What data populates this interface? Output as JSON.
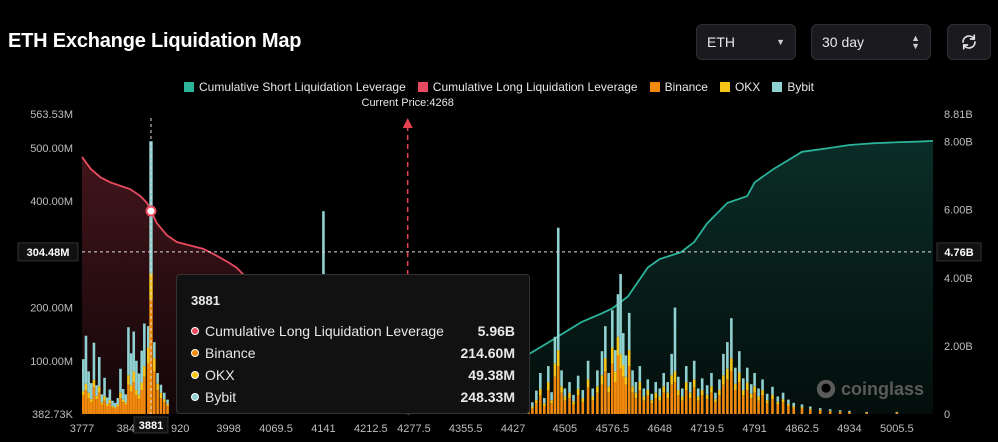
{
  "title": "ETH Exchange Liquidation Map",
  "controls": {
    "symbol": "ETH",
    "range": "30 day"
  },
  "watermark": "coinglass",
  "tooltip": {
    "title": "3881",
    "rows": [
      {
        "label": "Cumulative Long Liquidation Leverage",
        "value": "5.96B",
        "color": "#e84a5f"
      },
      {
        "label": "Binance",
        "value": "214.60M",
        "color": "#f2890c"
      },
      {
        "label": "OKX",
        "value": "49.38M",
        "color": "#f7c518"
      },
      {
        "label": "Bybit",
        "value": "248.33M",
        "color": "#8fd0d0"
      }
    ]
  },
  "chart_data": {
    "type": "bar",
    "legend": [
      {
        "name": "Cumulative Short Liquidation Leverage",
        "color": "#2bb39a"
      },
      {
        "name": "Cumulative Long Liquidation Leverage",
        "color": "#e84a5f"
      },
      {
        "name": "Binance",
        "color": "#f2890c"
      },
      {
        "name": "OKX",
        "color": "#f7c518"
      },
      {
        "name": "Bybit",
        "color": "#8fd0d0"
      }
    ],
    "current_price_label": "Current Price:4268",
    "current_price": 4268,
    "x_range": [
      3777,
      5060
    ],
    "x_ticks": [
      "3777",
      "384",
      "3881",
      "920",
      "3998",
      "4069.5",
      "4141",
      "4212.5",
      "4277.5",
      "4355.5",
      "4427",
      "4505",
      "4576.5",
      "4648",
      "4719.5",
      "4791",
      "4862.5",
      "4934",
      "5005.5"
    ],
    "y_left_ticks": [
      "563.53M",
      "500.00M",
      "400.00M",
      "304.48M",
      "200.00M",
      "100.00M",
      "382.73K"
    ],
    "y_left_range": [
      0,
      563.53
    ],
    "y_right_ticks": [
      "8.81B",
      "8.00B",
      "6.00B",
      "4.76B",
      "4.00B",
      "2.00B",
      "0"
    ],
    "y_right_range": [
      0,
      8.81
    ],
    "crosshair": {
      "x": 3881,
      "left_value": "304.48M",
      "right_value": "4.76B"
    },
    "long_cumulative": {
      "x": [
        3777,
        3790,
        3805,
        3820,
        3835,
        3850,
        3865,
        3875,
        3881,
        3890,
        3905,
        3920,
        3940,
        3960,
        3980,
        3998,
        4010,
        4030,
        4060,
        4100,
        4150,
        4200,
        4250,
        4268
      ],
      "y": [
        7.55,
        7.2,
        6.95,
        6.8,
        6.7,
        6.6,
        6.4,
        6.2,
        5.96,
        5.6,
        5.25,
        5.05,
        4.95,
        4.85,
        4.65,
        4.45,
        4.3,
        3.9,
        3.3,
        2.6,
        1.8,
        1.1,
        0.4,
        0.0
      ]
    },
    "short_cumulative": {
      "x": [
        4268,
        4300,
        4350,
        4400,
        4427,
        4450,
        4480,
        4505,
        4530,
        4560,
        4576.5,
        4600,
        4630,
        4648,
        4680,
        4700,
        4719.5,
        4750,
        4780,
        4791,
        4820,
        4850,
        4862.5,
        4900,
        4934,
        4970,
        5005.5,
        5040,
        5060
      ],
      "y": [
        0.0,
        0.3,
        0.8,
        1.2,
        1.6,
        1.75,
        2.1,
        2.4,
        2.7,
        2.95,
        3.1,
        3.45,
        4.3,
        4.55,
        4.75,
        5.05,
        5.6,
        6.2,
        6.4,
        6.8,
        7.2,
        7.55,
        7.7,
        7.8,
        7.9,
        7.95,
        7.98,
        8.0,
        8.02
      ]
    },
    "bars": [
      {
        "x": 3779,
        "binance": 35,
        "okx": 8,
        "bybit": 60
      },
      {
        "x": 3783,
        "binance": 45,
        "okx": 12,
        "bybit": 90
      },
      {
        "x": 3787,
        "binance": 30,
        "okx": 10,
        "bybit": 40
      },
      {
        "x": 3791,
        "binance": 22,
        "okx": 6,
        "bybit": 30
      },
      {
        "x": 3795,
        "binance": 50,
        "okx": 14,
        "bybit": 70
      },
      {
        "x": 3799,
        "binance": 28,
        "okx": 6,
        "bybit": 20
      },
      {
        "x": 3803,
        "binance": 40,
        "okx": 12,
        "bybit": 55
      },
      {
        "x": 3807,
        "binance": 18,
        "okx": 4,
        "bybit": 15
      },
      {
        "x": 3811,
        "binance": 25,
        "okx": 8,
        "bybit": 35
      },
      {
        "x": 3815,
        "binance": 15,
        "okx": 4,
        "bybit": 12
      },
      {
        "x": 3819,
        "binance": 20,
        "okx": 6,
        "bybit": 20
      },
      {
        "x": 3823,
        "binance": 12,
        "okx": 3,
        "bybit": 10
      },
      {
        "x": 3827,
        "binance": 10,
        "okx": 3,
        "bybit": 8
      },
      {
        "x": 3831,
        "binance": 14,
        "okx": 4,
        "bybit": 12
      },
      {
        "x": 3835,
        "binance": 30,
        "okx": 10,
        "bybit": 45
      },
      {
        "x": 3839,
        "binance": 22,
        "okx": 5,
        "bybit": 20
      },
      {
        "x": 3843,
        "binance": 18,
        "okx": 4,
        "bybit": 15
      },
      {
        "x": 3847,
        "binance": 55,
        "okx": 18,
        "bybit": 90
      },
      {
        "x": 3851,
        "binance": 42,
        "okx": 12,
        "bybit": 60
      },
      {
        "x": 3855,
        "binance": 60,
        "okx": 20,
        "bybit": 75
      },
      {
        "x": 3859,
        "binance": 35,
        "okx": 10,
        "bybit": 55
      },
      {
        "x": 3863,
        "binance": 28,
        "okx": 8,
        "bybit": 40
      },
      {
        "x": 3867,
        "binance": 45,
        "okx": 14,
        "bybit": 60
      },
      {
        "x": 3871,
        "binance": 70,
        "okx": 20,
        "bybit": 80
      },
      {
        "x": 3877,
        "binance": 95,
        "okx": 30,
        "bybit": 40
      },
      {
        "x": 3881,
        "binance": 214.6,
        "okx": 49.38,
        "bybit": 248.33
      },
      {
        "x": 3886,
        "binance": 80,
        "okx": 25,
        "bybit": 30
      },
      {
        "x": 3891,
        "binance": 45,
        "okx": 12,
        "bybit": 20
      },
      {
        "x": 3896,
        "binance": 30,
        "okx": 10,
        "bybit": 15
      },
      {
        "x": 3901,
        "binance": 22,
        "okx": 6,
        "bybit": 12
      },
      {
        "x": 3906,
        "binance": 15,
        "okx": 4,
        "bybit": 8
      },
      {
        "x": 4141,
        "binance": 20,
        "okx": 6,
        "bybit": 355
      },
      {
        "x": 4430,
        "binance": 6,
        "okx": 2,
        "bybit": 4
      },
      {
        "x": 4436,
        "binance": 15,
        "okx": 5,
        "bybit": 12
      },
      {
        "x": 4442,
        "binance": 8,
        "okx": 3,
        "bybit": 5
      },
      {
        "x": 4450,
        "binance": 25,
        "okx": 8,
        "bybit": 20
      },
      {
        "x": 4456,
        "binance": 10,
        "okx": 4,
        "bybit": 8
      },
      {
        "x": 4462,
        "binance": 20,
        "okx": 6,
        "bybit": 18
      },
      {
        "x": 4468,
        "binance": 35,
        "okx": 12,
        "bybit": 30
      },
      {
        "x": 4474,
        "binance": 15,
        "okx": 5,
        "bybit": 10
      },
      {
        "x": 4480,
        "binance": 45,
        "okx": 15,
        "bybit": 30
      },
      {
        "x": 4485,
        "binance": 20,
        "okx": 6,
        "bybit": 15
      },
      {
        "x": 4490,
        "binance": 70,
        "okx": 25,
        "bybit": 50
      },
      {
        "x": 4495,
        "binance": 90,
        "okx": 30,
        "bybit": 230
      },
      {
        "x": 4500,
        "binance": 40,
        "okx": 12,
        "bybit": 30
      },
      {
        "x": 4505,
        "binance": 25,
        "okx": 8,
        "bybit": 15
      },
      {
        "x": 4512,
        "binance": 30,
        "okx": 10,
        "bybit": 20
      },
      {
        "x": 4518,
        "binance": 18,
        "okx": 6,
        "bybit": 12
      },
      {
        "x": 4525,
        "binance": 35,
        "okx": 12,
        "bybit": 25
      },
      {
        "x": 4532,
        "binance": 22,
        "okx": 8,
        "bybit": 15
      },
      {
        "x": 4540,
        "binance": 50,
        "okx": 15,
        "bybit": 35
      },
      {
        "x": 4547,
        "binance": 25,
        "okx": 8,
        "bybit": 15
      },
      {
        "x": 4554,
        "binance": 40,
        "okx": 12,
        "bybit": 30
      },
      {
        "x": 4561,
        "binance": 55,
        "okx": 18,
        "bybit": 45
      },
      {
        "x": 4566,
        "binance": 80,
        "okx": 25,
        "bybit": 60
      },
      {
        "x": 4571,
        "binance": 40,
        "okx": 12,
        "bybit": 25
      },
      {
        "x": 4576.5,
        "binance": 95,
        "okx": 30,
        "bybit": 70
      },
      {
        "x": 4581,
        "binance": 60,
        "okx": 20,
        "bybit": 40
      },
      {
        "x": 4585,
        "binance": 110,
        "okx": 35,
        "bybit": 80
      },
      {
        "x": 4589,
        "binance": 85,
        "okx": 28,
        "bybit": 150
      },
      {
        "x": 4593,
        "binance": 70,
        "okx": 22,
        "bybit": 60
      },
      {
        "x": 4597,
        "binance": 55,
        "okx": 15,
        "bybit": 40
      },
      {
        "x": 4602,
        "binance": 90,
        "okx": 30,
        "bybit": 70
      },
      {
        "x": 4607,
        "binance": 40,
        "okx": 12,
        "bybit": 30
      },
      {
        "x": 4612,
        "binance": 30,
        "okx": 10,
        "bybit": 20
      },
      {
        "x": 4618,
        "binance": 45,
        "okx": 15,
        "bybit": 30
      },
      {
        "x": 4624,
        "binance": 25,
        "okx": 8,
        "bybit": 15
      },
      {
        "x": 4630,
        "binance": 35,
        "okx": 10,
        "bybit": 20
      },
      {
        "x": 4636,
        "binance": 20,
        "okx": 6,
        "bybit": 12
      },
      {
        "x": 4642,
        "binance": 30,
        "okx": 10,
        "bybit": 20
      },
      {
        "x": 4648,
        "binance": 25,
        "okx": 8,
        "bybit": 15
      },
      {
        "x": 4654,
        "binance": 40,
        "okx": 12,
        "bybit": 25
      },
      {
        "x": 4660,
        "binance": 30,
        "okx": 10,
        "bybit": 20
      },
      {
        "x": 4666,
        "binance": 55,
        "okx": 18,
        "bybit": 40
      },
      {
        "x": 4671,
        "binance": 60,
        "okx": 20,
        "bybit": 120
      },
      {
        "x": 4676,
        "binance": 35,
        "okx": 10,
        "bybit": 25
      },
      {
        "x": 4682,
        "binance": 25,
        "okx": 8,
        "bybit": 15
      },
      {
        "x": 4688,
        "binance": 45,
        "okx": 15,
        "bybit": 30
      },
      {
        "x": 4694,
        "binance": 30,
        "okx": 10,
        "bybit": 20
      },
      {
        "x": 4700,
        "binance": 50,
        "okx": 15,
        "bybit": 35
      },
      {
        "x": 4706,
        "binance": 25,
        "okx": 8,
        "bybit": 15
      },
      {
        "x": 4712,
        "binance": 35,
        "okx": 10,
        "bybit": 22
      },
      {
        "x": 4719.5,
        "binance": 28,
        "okx": 8,
        "bybit": 18
      },
      {
        "x": 4726,
        "binance": 40,
        "okx": 12,
        "bybit": 25
      },
      {
        "x": 4732,
        "binance": 22,
        "okx": 6,
        "bybit": 12
      },
      {
        "x": 4738,
        "binance": 35,
        "okx": 10,
        "bybit": 20
      },
      {
        "x": 4744,
        "binance": 55,
        "okx": 18,
        "bybit": 40
      },
      {
        "x": 4750,
        "binance": 65,
        "okx": 20,
        "bybit": 50
      },
      {
        "x": 4756,
        "binance": 80,
        "okx": 25,
        "bybit": 75
      },
      {
        "x": 4762,
        "binance": 45,
        "okx": 12,
        "bybit": 30
      },
      {
        "x": 4768,
        "binance": 60,
        "okx": 18,
        "bybit": 40
      },
      {
        "x": 4774,
        "binance": 35,
        "okx": 10,
        "bybit": 22
      },
      {
        "x": 4780,
        "binance": 45,
        "okx": 14,
        "bybit": 28
      },
      {
        "x": 4786,
        "binance": 30,
        "okx": 8,
        "bybit": 18
      },
      {
        "x": 4791,
        "binance": 40,
        "okx": 12,
        "bybit": 25
      },
      {
        "x": 4797,
        "binance": 25,
        "okx": 8,
        "bybit": 15
      },
      {
        "x": 4803,
        "binance": 35,
        "okx": 10,
        "bybit": 20
      },
      {
        "x": 4810,
        "binance": 20,
        "okx": 6,
        "bybit": 12
      },
      {
        "x": 4818,
        "binance": 28,
        "okx": 8,
        "bybit": 15
      },
      {
        "x": 4826,
        "binance": 18,
        "okx": 5,
        "bybit": 10
      },
      {
        "x": 4834,
        "binance": 22,
        "okx": 6,
        "bybit": 12
      },
      {
        "x": 4842,
        "binance": 15,
        "okx": 4,
        "bybit": 8
      },
      {
        "x": 4850,
        "binance": 12,
        "okx": 3,
        "bybit": 6
      },
      {
        "x": 4862.5,
        "binance": 10,
        "okx": 3,
        "bybit": 5
      },
      {
        "x": 4875,
        "binance": 8,
        "okx": 2,
        "bybit": 4
      },
      {
        "x": 4890,
        "binance": 6,
        "okx": 2,
        "bybit": 3
      },
      {
        "x": 4905,
        "binance": 5,
        "okx": 1,
        "bybit": 3
      },
      {
        "x": 4920,
        "binance": 4,
        "okx": 1,
        "bybit": 2
      },
      {
        "x": 4934,
        "binance": 3,
        "okx": 1,
        "bybit": 2
      },
      {
        "x": 4960,
        "binance": 2,
        "okx": 1,
        "bybit": 1
      },
      {
        "x": 5005.5,
        "binance": 2,
        "okx": 1,
        "bybit": 1
      }
    ]
  }
}
